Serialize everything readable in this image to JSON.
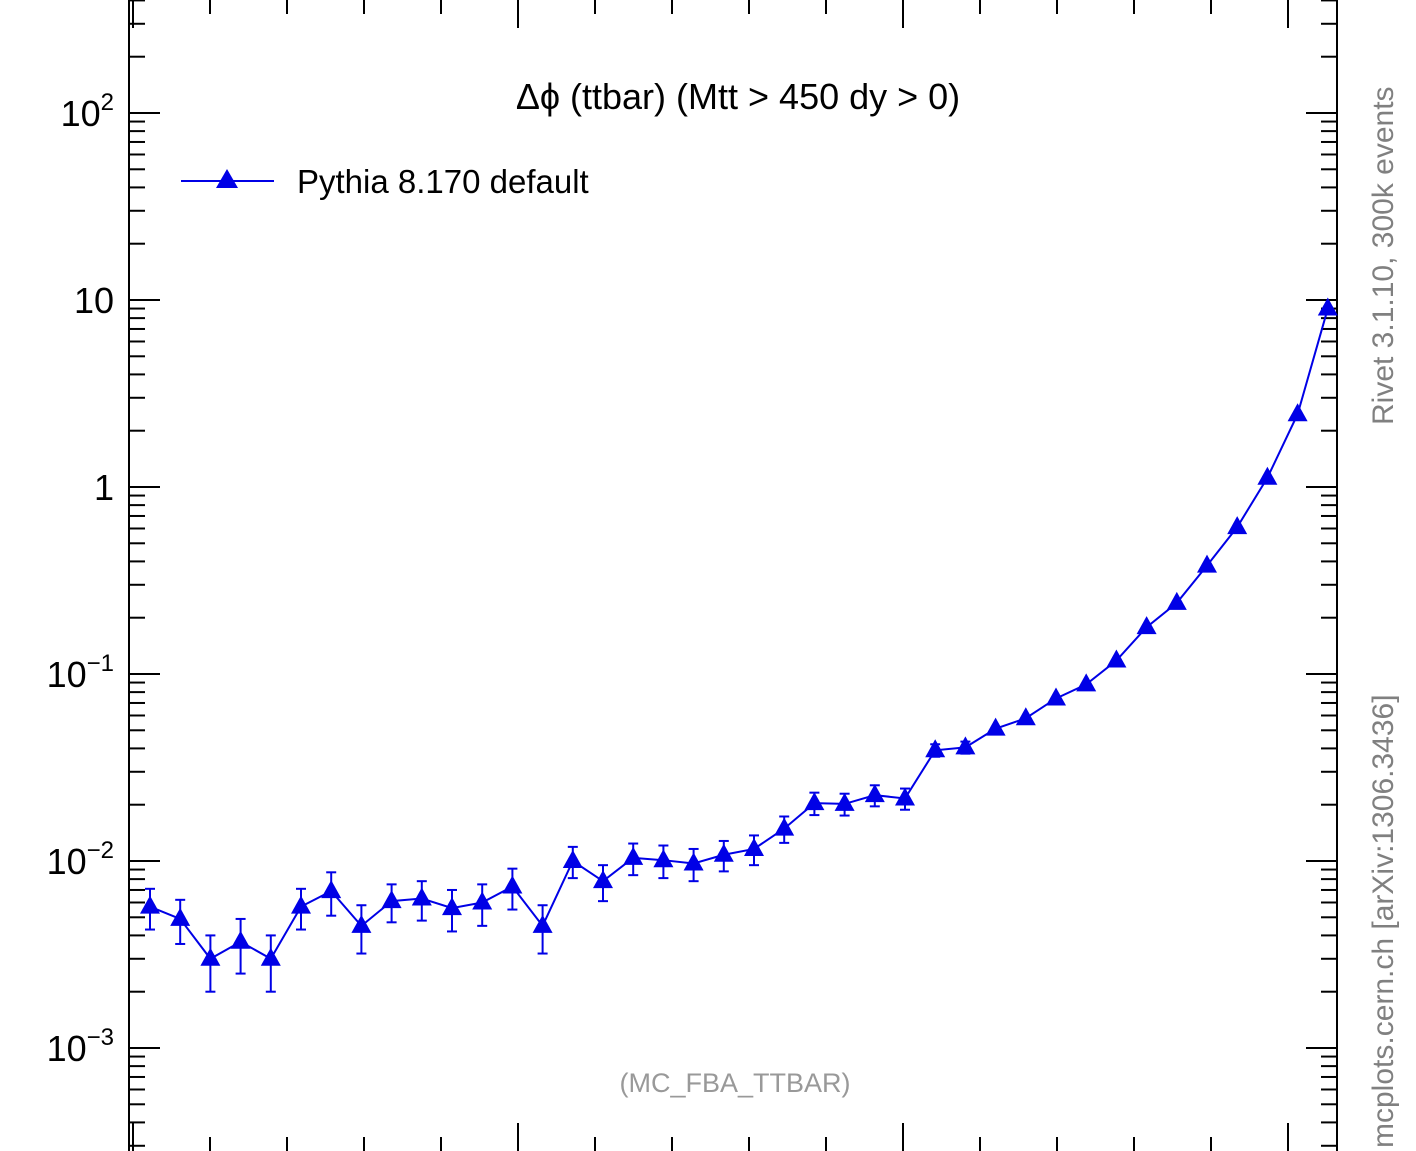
{
  "chart_data": {
    "type": "scatter",
    "title": "Δϕ (ttbar) (Mtt > 450 dy > 0)",
    "source_label": "(MC_FBA_TTBAR)",
    "right_label_top": "Rivet 3.1.10,  300k events",
    "right_label_bottom": "mcplots.cern.ch [arXiv:1306.3436]",
    "yscale": "log",
    "ylim": [
      0.0003,
      300
    ],
    "xlim": [
      0,
      40
    ],
    "grid": false,
    "legend_position": "top-left",
    "y_tick_labels": [
      {
        "value": 100,
        "base": "10",
        "exp": "2"
      },
      {
        "value": 10,
        "base": "10",
        "exp": ""
      },
      {
        "value": 1,
        "base": "1",
        "exp": ""
      },
      {
        "value": 0.1,
        "base": "10",
        "exp": "−1"
      },
      {
        "value": 0.01,
        "base": "10",
        "exp": "−2"
      },
      {
        "value": 0.001,
        "base": "10",
        "exp": "−3"
      }
    ],
    "series": [
      {
        "name": "Pythia 8.170 default",
        "color": "#0000e6",
        "marker": "triangle",
        "x": [
          1,
          2,
          3,
          4,
          5,
          6,
          7,
          8,
          9,
          10,
          11,
          12,
          13,
          14,
          15,
          16,
          17,
          18,
          19,
          20,
          21,
          22,
          23,
          24,
          25,
          26,
          27,
          28,
          29,
          30,
          31,
          32,
          33,
          34,
          35,
          36,
          37,
          38,
          39,
          40
        ],
        "y": [
          0.0057,
          0.0049,
          0.003,
          0.0037,
          0.003,
          0.0057,
          0.0069,
          0.0045,
          0.0061,
          0.0063,
          0.0056,
          0.006,
          0.0073,
          0.0045,
          0.01,
          0.0078,
          0.0104,
          0.0101,
          0.0097,
          0.0108,
          0.0116,
          0.0149,
          0.0204,
          0.0202,
          0.0225,
          0.0216,
          0.0391,
          0.0405,
          0.051,
          0.058,
          0.074,
          0.088,
          0.118,
          0.178,
          0.24,
          0.38,
          0.61,
          1.12,
          2.45,
          9.0
        ],
        "yerr": [
          0.0014,
          0.0013,
          0.001,
          0.0012,
          0.001,
          0.0014,
          0.0018,
          0.0013,
          0.0014,
          0.0015,
          0.0014,
          0.0015,
          0.0018,
          0.0013,
          0.0019,
          0.0017,
          0.002,
          0.002,
          0.0019,
          0.002,
          0.0021,
          0.0024,
          0.0028,
          0.0027,
          0.0029,
          0.0028,
          0.003,
          0.003,
          0.003,
          0.003,
          0.004,
          0.004,
          0.005,
          0.006,
          0.007,
          0.01,
          0.015,
          0.02,
          0.04,
          0.1
        ]
      }
    ]
  }
}
